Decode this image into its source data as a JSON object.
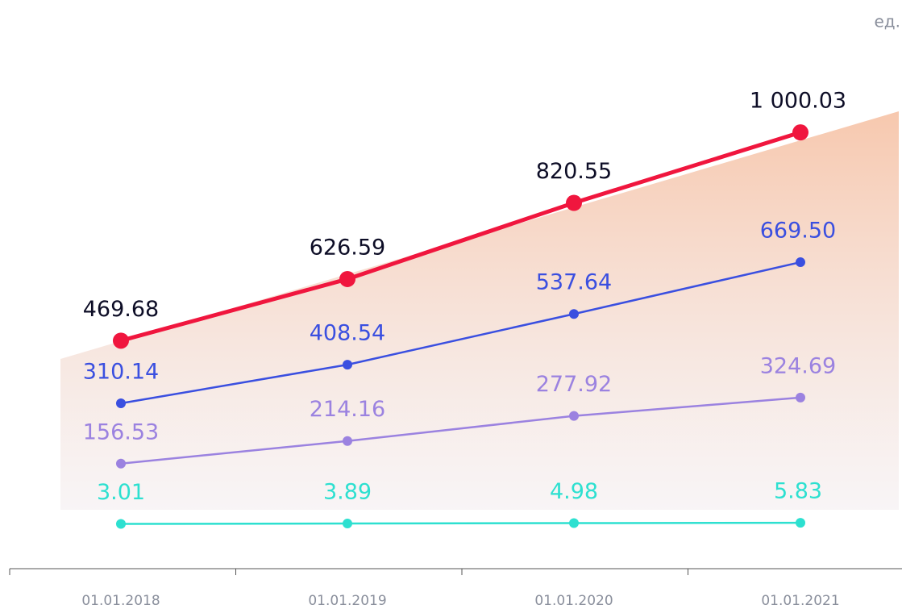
{
  "chart_data": {
    "type": "line",
    "unit": "ед.",
    "categories": [
      "01.01.2018",
      "01.01.2019",
      "01.01.2020",
      "01.01.2021"
    ],
    "ylim": [
      -110,
      1100
    ],
    "series": [
      {
        "name": null,
        "color": "#f0163e",
        "label_color": "#0d0d26",
        "values": [
          469.68,
          626.59,
          820.55,
          1000.03
        ],
        "value_labels": [
          "469.68",
          "626.59",
          "820.55",
          "1 000.03"
        ]
      },
      {
        "name": null,
        "color": "#3a4fe0",
        "label_color": "#3a4fe0",
        "values": [
          310.14,
          408.54,
          537.64,
          669.5
        ],
        "value_labels": [
          "310.14",
          "408.54",
          "537.64",
          "669.50"
        ]
      },
      {
        "name": null,
        "color": "#9b82e0",
        "label_color": "#9b82e0",
        "values": [
          156.53,
          214.16,
          277.92,
          324.69
        ],
        "value_labels": [
          "156.53",
          "214.16",
          "277.92",
          "324.69"
        ]
      },
      {
        "name": null,
        "color": "#2de0d0",
        "label_color": "#2de0d0",
        "values": [
          3.01,
          3.89,
          4.98,
          5.83
        ],
        "value_labels": [
          "3.01",
          "3.89",
          "4.98",
          "5.83"
        ]
      }
    ]
  }
}
